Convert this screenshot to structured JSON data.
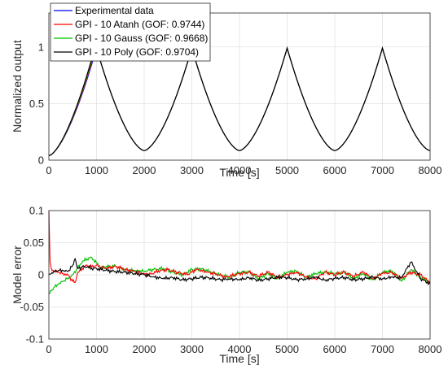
{
  "chart_data": [
    {
      "type": "line",
      "xlabel": "Time [s]",
      "ylabel": "Normalized output",
      "xlim": [
        0,
        8000
      ],
      "ylim": [
        0,
        1.3
      ],
      "xticks": [
        "0",
        "1000",
        "2000",
        "3000",
        "4000",
        "5000",
        "6000",
        "7000",
        "8000"
      ],
      "yticks": [
        "0",
        "0.5",
        "1"
      ],
      "grid": true,
      "legend_position": "top-left",
      "waveform": {
        "type": "periodic-cusp",
        "period": 2000,
        "peak_times": [
          1000,
          3000,
          5000,
          7000
        ],
        "trough_times": [
          2000,
          4000,
          6000,
          8000
        ],
        "peak_value": 0.99,
        "trough_value": 0.085,
        "start_value": 0.04
      },
      "series": [
        {
          "name": "Experimental data",
          "color": "#0000ff"
        },
        {
          "name": "GPI - 10 Atanh (GOF: 0.9744)",
          "color": "#ff0000"
        },
        {
          "name": "GPI - 10 Gauss (GOF: 0.9668)",
          "color": "#00c000"
        },
        {
          "name": "GPI - 10 Poly (GOF: 0.9704)",
          "color": "#000000"
        }
      ]
    },
    {
      "type": "line",
      "xlabel": "Time [s]",
      "ylabel": "Model error",
      "xlim": [
        0,
        8000
      ],
      "ylim": [
        -0.1,
        0.1
      ],
      "xticks": [
        "0",
        "1000",
        "2000",
        "3000",
        "4000",
        "5000",
        "6000",
        "7000",
        "8000"
      ],
      "yticks": [
        "-0.1",
        "-0.05",
        "0",
        "0.05",
        "0.1"
      ],
      "grid": true,
      "series": [
        {
          "name": "Atanh",
          "color": "#ff0000",
          "x": [
            0,
            25,
            50,
            100,
            200,
            300,
            400,
            500,
            550,
            600,
            700,
            800,
            900,
            1000,
            1100,
            1200,
            1400,
            1600,
            1800,
            2000,
            2100,
            2300,
            2500,
            2700,
            2900,
            3000,
            3100,
            3300,
            3500,
            3700,
            3900,
            4000,
            4200,
            4400,
            4600,
            4800,
            5000,
            5200,
            5400,
            5600,
            5800,
            6000,
            6200,
            6400,
            6600,
            6800,
            7000,
            7200,
            7400,
            7600,
            7800,
            8000
          ],
          "y": [
            0.1,
            0.02,
            0.01,
            0.005,
            0.004,
            0.002,
            0.0,
            -0.01,
            -0.012,
            0.002,
            0.01,
            0.015,
            0.012,
            0.015,
            0.012,
            0.01,
            0.013,
            0.008,
            0.005,
            0.002,
            0.0,
            0.006,
            0.008,
            0.004,
            0.0,
            0.004,
            0.009,
            0.004,
            0.002,
            -0.004,
            0.0,
            0.002,
            0.004,
            -0.002,
            0.004,
            -0.004,
            0.0,
            0.004,
            -0.004,
            -0.006,
            0.004,
            0.0,
            0.004,
            -0.002,
            0.004,
            -0.006,
            0.002,
            0.004,
            -0.006,
            0.004,
            0.0,
            -0.012
          ]
        },
        {
          "name": "Gauss",
          "color": "#00c000",
          "x": [
            0,
            50,
            100,
            200,
            300,
            400,
            500,
            600,
            700,
            800,
            900,
            1000,
            1100,
            1200,
            1400,
            1600,
            1800,
            2000,
            2200,
            2400,
            2600,
            2800,
            3000,
            3200,
            3400,
            3600,
            3800,
            4000,
            4200,
            4400,
            4600,
            4800,
            5000,
            5200,
            5400,
            5600,
            5800,
            6000,
            6200,
            6400,
            6600,
            6800,
            7000,
            7200,
            7400,
            7600,
            7800,
            8000
          ],
          "y": [
            -0.03,
            -0.025,
            -0.02,
            -0.015,
            -0.01,
            -0.005,
            0.0,
            0.01,
            0.02,
            0.025,
            0.027,
            0.018,
            0.01,
            0.013,
            0.013,
            0.009,
            0.006,
            0.006,
            0.008,
            0.01,
            0.004,
            0.0,
            0.008,
            0.01,
            0.004,
            0.0,
            -0.004,
            0.004,
            0.004,
            -0.006,
            0.002,
            -0.006,
            0.004,
            0.006,
            -0.004,
            0.002,
            0.004,
            0.002,
            0.004,
            -0.006,
            0.002,
            -0.008,
            0.004,
            0.006,
            -0.01,
            0.008,
            -0.004,
            -0.012
          ]
        },
        {
          "name": "Poly",
          "color": "#000000",
          "x": [
            0,
            50,
            100,
            200,
            300,
            400,
            500,
            550,
            600,
            700,
            800,
            900,
            1000,
            1100,
            1200,
            1400,
            1600,
            1800,
            2000,
            2200,
            2400,
            2600,
            2800,
            3000,
            3200,
            3400,
            3600,
            3800,
            4000,
            4200,
            4400,
            4600,
            4800,
            5000,
            5200,
            5400,
            5600,
            5800,
            6000,
            6200,
            6400,
            6600,
            6800,
            7000,
            7200,
            7400,
            7600,
            7800,
            8000
          ],
          "y": [
            0.0,
            0.002,
            0.005,
            0.007,
            0.006,
            0.005,
            0.015,
            0.025,
            0.01,
            0.012,
            0.012,
            0.01,
            0.01,
            0.008,
            0.007,
            0.005,
            0.004,
            0.002,
            0.0,
            -0.003,
            -0.006,
            -0.004,
            -0.008,
            -0.006,
            -0.004,
            -0.005,
            -0.008,
            -0.006,
            -0.008,
            -0.004,
            -0.009,
            -0.006,
            -0.004,
            -0.004,
            -0.008,
            -0.006,
            -0.004,
            -0.008,
            -0.006,
            -0.004,
            -0.008,
            -0.006,
            -0.004,
            -0.006,
            -0.004,
            -0.004,
            0.02,
            -0.006,
            -0.014
          ]
        }
      ]
    }
  ]
}
